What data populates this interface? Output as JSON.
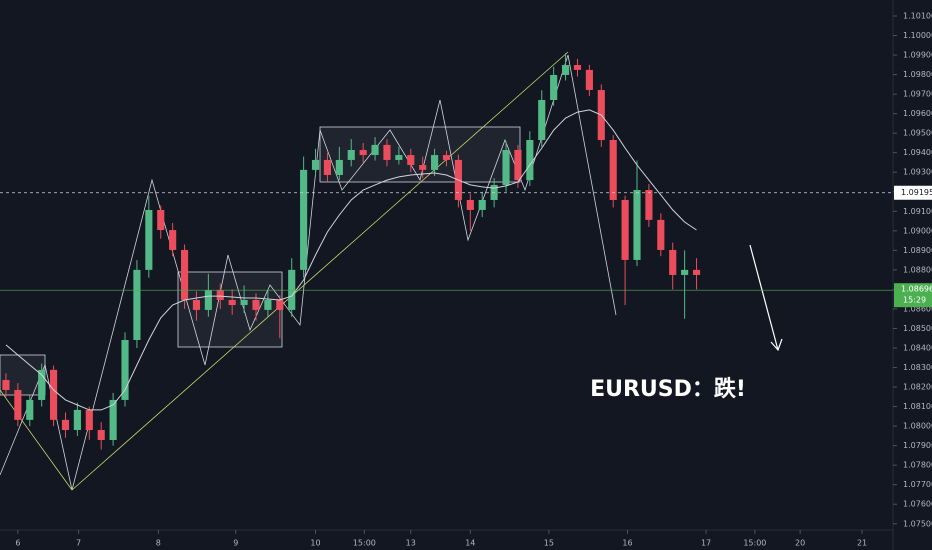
{
  "chart_data": {
    "type": "candlestick",
    "up_color": "#53b987",
    "down_color": "#eb4d5c",
    "open": [
      1.08236,
      1.08185,
      1.08032,
      1.08134,
      1.08288,
      1.08032,
      1.0798,
      1.08083,
      1.0798,
      1.07929,
      1.08134,
      1.08441,
      1.088,
      1.09107,
      1.09004,
      1.08902,
      1.08646,
      1.08595,
      1.08697,
      1.08646,
      1.0862,
      1.08646,
      1.08595,
      1.08646,
      1.08595,
      1.088,
      1.09312,
      1.09363,
      1.09286,
      1.09363,
      1.09414,
      1.09388,
      1.0944,
      1.09363,
      1.09388,
      1.09337,
      1.09312,
      1.09388,
      1.09363,
      1.09158,
      1.09107,
      1.09158,
      1.09235,
      1.09414,
      1.0926,
      1.09465,
      1.0967,
      1.09798,
      1.09849,
      1.09824,
      1.09721,
      1.09465,
      1.09158,
      1.08851,
      1.09209,
      1.09056,
      1.08902,
      1.08774,
      1.088
    ],
    "high": [
      1.0827,
      1.0822,
      1.0816,
      1.0832,
      1.0831,
      1.0807,
      1.0812,
      1.081,
      1.0802,
      1.0817,
      1.0848,
      1.0885,
      1.0918,
      1.0913,
      1.0904,
      1.0893,
      1.0869,
      1.0878,
      1.0873,
      1.087,
      1.0872,
      1.0868,
      1.087,
      1.0867,
      1.0886,
      1.0938,
      1.0942,
      1.094,
      1.0943,
      1.0947,
      1.0945,
      1.0948,
      1.0947,
      1.0943,
      1.0942,
      1.0938,
      1.0942,
      1.0941,
      1.0939,
      1.0919,
      1.092,
      1.0927,
      1.0946,
      1.0944,
      1.0951,
      1.0972,
      1.0984,
      1.0991,
      1.0988,
      1.0985,
      1.0975,
      1.0949,
      1.0918,
      1.0936,
      1.0924,
      1.0909,
      1.0894,
      1.089,
      1.0886
    ],
    "low": [
      1.0815,
      1.08,
      1.08,
      1.081,
      1.08,
      1.0794,
      1.0795,
      1.0793,
      1.0788,
      1.079,
      1.081,
      1.084,
      1.0876,
      1.0896,
      1.0887,
      1.086,
      1.0854,
      1.0856,
      1.086,
      1.0857,
      1.0858,
      1.0854,
      1.0856,
      1.0845,
      1.0856,
      1.0876,
      1.0928,
      1.0925,
      1.0926,
      1.0933,
      1.0935,
      1.0936,
      1.0933,
      1.0934,
      1.093,
      1.0927,
      1.0928,
      1.0933,
      1.0912,
      1.09,
      1.0907,
      1.0912,
      1.092,
      1.0922,
      1.0923,
      1.0943,
      1.0964,
      1.0977,
      1.0979,
      1.0969,
      1.0943,
      1.0912,
      1.0862,
      1.0882,
      1.0902,
      1.0887,
      1.087,
      1.0855,
      1.087
    ],
    "close": [
      1.08185,
      1.08032,
      1.08134,
      1.08288,
      1.08032,
      1.0798,
      1.08083,
      1.0798,
      1.07929,
      1.08134,
      1.08441,
      1.088,
      1.09107,
      1.09004,
      1.08902,
      1.08646,
      1.08595,
      1.08697,
      1.08646,
      1.0862,
      1.08646,
      1.08595,
      1.08646,
      1.08595,
      1.088,
      1.09312,
      1.09363,
      1.09286,
      1.09363,
      1.09414,
      1.09388,
      1.0944,
      1.09363,
      1.09388,
      1.09337,
      1.09312,
      1.09388,
      1.09363,
      1.09158,
      1.09107,
      1.09158,
      1.09235,
      1.09414,
      1.0926,
      1.09465,
      1.0967,
      1.09798,
      1.09849,
      1.09824,
      1.09721,
      1.09465,
      1.09158,
      1.08851,
      1.09209,
      1.09056,
      1.08902,
      1.08774,
      1.088,
      1.08774
    ],
    "ma": {
      "color": "#d1d4dc",
      "values": [
        1.08416,
        1.08364,
        1.08313,
        1.08262,
        1.08185,
        1.08134,
        1.08108,
        1.08083,
        1.08083,
        1.08108,
        1.08185,
        1.08313,
        1.08441,
        1.08554,
        1.0862,
        1.08646,
        1.08656,
        1.08666,
        1.08666,
        1.08661,
        1.08656,
        1.08656,
        1.08651,
        1.08646,
        1.08666,
        1.08748,
        1.08876,
        1.08994,
        1.09081,
        1.09158,
        1.09209,
        1.09235,
        1.0926,
        1.09276,
        1.09286,
        1.09291,
        1.09296,
        1.09286,
        1.0926,
        1.09235,
        1.09225,
        1.09219,
        1.0923,
        1.0925,
        1.09337,
        1.09424,
        1.09516,
        1.09578,
        1.09608,
        1.09619,
        1.09593,
        1.09516,
        1.09424,
        1.09337,
        1.0926,
        1.09184,
        1.09107,
        1.09045,
        1.09004
      ]
    },
    "xlim": [
      0,
      75
    ],
    "xticks": [
      {
        "value": 1.5,
        "label": "6"
      },
      {
        "value": 6.6,
        "label": "7"
      },
      {
        "value": 13.3,
        "label": "8"
      },
      {
        "value": 19.8,
        "label": "9"
      },
      {
        "value": 26.5,
        "label": "10"
      },
      {
        "value": 30.6,
        "label": "15:00"
      },
      {
        "value": 34.5,
        "label": "13"
      },
      {
        "value": 39.5,
        "label": "14"
      },
      {
        "value": 46.1,
        "label": "15"
      },
      {
        "value": 52.7,
        "label": "16"
      },
      {
        "value": 59.3,
        "label": "17"
      },
      {
        "value": 63.4,
        "label": "15:00"
      },
      {
        "value": 67.2,
        "label": "20"
      },
      {
        "value": 72.4,
        "label": "21"
      }
    ],
    "ylim": [
      1.07468,
      1.10182
    ],
    "yticks": [
      {
        "value": 1.101,
        "label": "1.10100"
      },
      {
        "value": 1.1,
        "label": "1.10000"
      },
      {
        "value": 1.099,
        "label": "1.09900"
      },
      {
        "value": 1.098,
        "label": "1.09800"
      },
      {
        "value": 1.097,
        "label": "1.09700"
      },
      {
        "value": 1.096,
        "label": "1.09600"
      },
      {
        "value": 1.095,
        "label": "1.09500"
      },
      {
        "value": 1.094,
        "label": "1.09400"
      },
      {
        "value": 1.093,
        "label": "1.09300"
      },
      {
        "value": 1.092,
        "label": "1.09200"
      },
      {
        "value": 1.091,
        "label": "1.09100"
      },
      {
        "value": 1.09,
        "label": "1.09000"
      },
      {
        "value": 1.089,
        "label": "1.08900"
      },
      {
        "value": 1.088,
        "label": "1.08800"
      },
      {
        "value": 1.087,
        "label": "1.08700"
      },
      {
        "value": 1.086,
        "label": "1.08600"
      },
      {
        "value": 1.085,
        "label": "1.08500"
      },
      {
        "value": 1.084,
        "label": "1.08400"
      },
      {
        "value": 1.083,
        "label": "1.08300"
      },
      {
        "value": 1.082,
        "label": "1.08200"
      },
      {
        "value": 1.081,
        "label": "1.08100"
      },
      {
        "value": 1.08,
        "label": "1.08000"
      },
      {
        "value": 1.079,
        "label": "1.07900"
      },
      {
        "value": 1.078,
        "label": "1.07800"
      },
      {
        "value": 1.077,
        "label": "1.07700"
      },
      {
        "value": 1.076,
        "label": "1.07600"
      },
      {
        "value": 1.075,
        "label": "1.07500"
      }
    ],
    "price_line": {
      "value": 1.09195,
      "label": "1.09195"
    },
    "last_price": {
      "value": 1.08696,
      "label": "1.08696",
      "countdown": "15:29",
      "color": "#4caf50"
    },
    "annotation": "EURUSD：跌!"
  }
}
